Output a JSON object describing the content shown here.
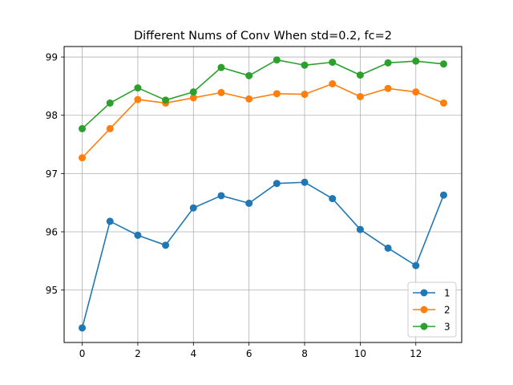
{
  "chart_data": {
    "type": "line",
    "title": "Different Nums of Conv When std=0.2, fc=2",
    "xlabel": "",
    "ylabel": "",
    "x": [
      0,
      1,
      2,
      3,
      4,
      5,
      6,
      7,
      8,
      9,
      10,
      11,
      12,
      13
    ],
    "xlim": [
      -0.65,
      13.65
    ],
    "ylim": [
      94.1,
      99.18
    ],
    "xticks": [
      0,
      2,
      4,
      6,
      8,
      10,
      12
    ],
    "yticks": [
      95,
      96,
      97,
      98,
      99
    ],
    "grid": true,
    "legend_position": "lower-right",
    "series": [
      {
        "name": "1",
        "color": "#1f77b4",
        "values": [
          94.35,
          96.18,
          95.94,
          95.77,
          96.41,
          96.62,
          96.49,
          96.83,
          96.85,
          96.57,
          96.04,
          95.72,
          95.42,
          96.63
        ]
      },
      {
        "name": "2",
        "color": "#ff7f0e",
        "values": [
          97.27,
          97.77,
          98.27,
          98.21,
          98.3,
          98.39,
          98.28,
          98.37,
          98.36,
          98.54,
          98.32,
          98.46,
          98.4,
          98.21
        ]
      },
      {
        "name": "3",
        "color": "#2ca02c",
        "values": [
          97.77,
          98.21,
          98.47,
          98.26,
          98.4,
          98.82,
          98.68,
          98.95,
          98.86,
          98.91,
          98.69,
          98.9,
          98.93,
          98.88
        ]
      }
    ]
  }
}
